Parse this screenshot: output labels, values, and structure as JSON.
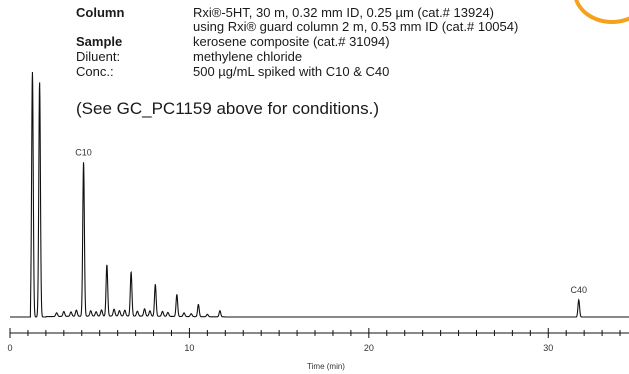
{
  "conditions": {
    "column_label": "Column",
    "column_value_1": "Rxi®-5HT, 30 m, 0.32 mm ID, 0.25 µm (cat.# 13924)",
    "column_value_2": "using Rxi® guard column 2 m, 0.53 mm ID (cat.# 10054)",
    "sample_label": "Sample",
    "sample_value": "kerosene composite (cat.# 31094)",
    "diluent_label": "Diluent:",
    "diluent_value": "methylene chloride",
    "conc_label": "Conc.:",
    "conc_value": "500 µg/mL spiked with C10 & C40"
  },
  "note": "(See GC_PC1159 above for conditions.)",
  "accent_color": "#f4a11d",
  "chart_data": {
    "type": "line",
    "title": "",
    "xlabel": "Time (min)",
    "ylabel": "",
    "xlim": [
      0,
      34.5
    ],
    "ylim": [
      0,
      100
    ],
    "x_ticks": [
      0,
      10,
      20,
      30
    ],
    "x_tick_labels": [
      "0",
      "10",
      "20",
      "30"
    ],
    "peaks": [
      {
        "x": 1.25,
        "height": 100,
        "label": ""
      },
      {
        "x": 1.65,
        "height": 96,
        "label": ""
      },
      {
        "x": 4.1,
        "height": 63,
        "label": "C10"
      },
      {
        "x": 5.4,
        "height": 21,
        "label": ""
      },
      {
        "x": 6.75,
        "height": 18,
        "label": ""
      },
      {
        "x": 8.1,
        "height": 13,
        "label": ""
      },
      {
        "x": 9.3,
        "height": 9,
        "label": ""
      },
      {
        "x": 10.5,
        "height": 5,
        "label": ""
      },
      {
        "x": 11.7,
        "height": 2.5,
        "label": ""
      },
      {
        "x": 31.7,
        "height": 7,
        "label": "C40"
      }
    ],
    "minor_peaks": [
      {
        "x": 2.6,
        "height": 1.5
      },
      {
        "x": 3.0,
        "height": 2
      },
      {
        "x": 3.4,
        "height": 1.8
      },
      {
        "x": 3.7,
        "height": 2.5
      },
      {
        "x": 4.5,
        "height": 2.2
      },
      {
        "x": 4.8,
        "height": 1.8
      },
      {
        "x": 5.1,
        "height": 2.5
      },
      {
        "x": 5.8,
        "height": 2.8
      },
      {
        "x": 6.1,
        "height": 2.2
      },
      {
        "x": 6.4,
        "height": 2.4
      },
      {
        "x": 7.1,
        "height": 2.0
      },
      {
        "x": 7.5,
        "height": 3.0
      },
      {
        "x": 7.8,
        "height": 2.2
      },
      {
        "x": 8.5,
        "height": 2.0
      },
      {
        "x": 8.8,
        "height": 1.6
      },
      {
        "x": 9.7,
        "height": 1.5
      },
      {
        "x": 10.1,
        "height": 1.2
      },
      {
        "x": 11.0,
        "height": 1.0
      }
    ]
  }
}
